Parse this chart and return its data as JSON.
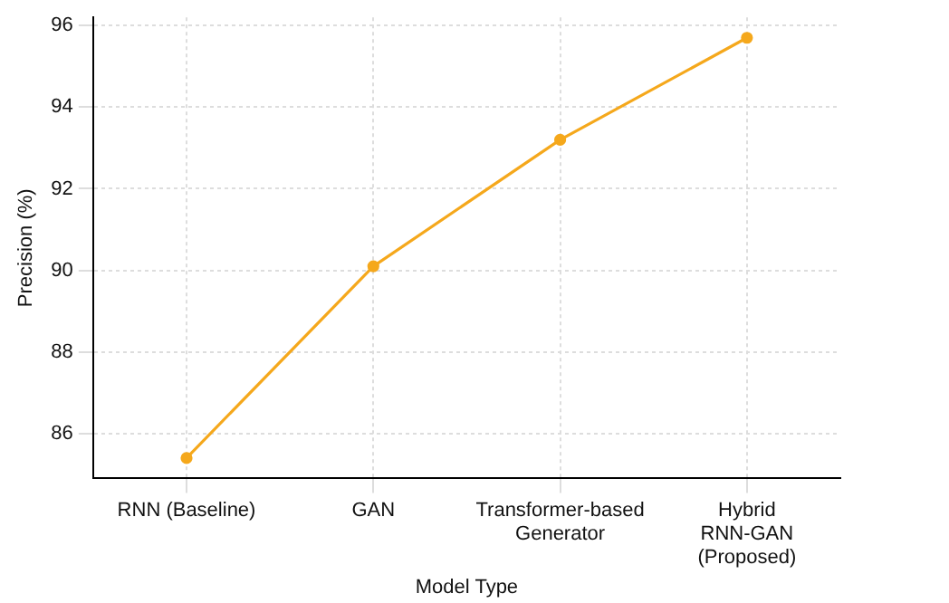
{
  "chart_data": {
    "type": "line",
    "xlabel": "Model Type",
    "ylabel": "Precision (%)",
    "categories": [
      "RNN (Baseline)",
      "GAN",
      "Transformer-based Generator",
      "Hybrid RNN-GAN (Proposed)"
    ],
    "series": [
      {
        "color": "#f5a81c",
        "values": [
          85.4,
          90.1,
          93.2,
          95.7
        ]
      }
    ],
    "ylim": [
      84.9,
      96.2
    ],
    "yticks": [
      86,
      88,
      90,
      92,
      94,
      96
    ],
    "grid": true,
    "marker": "circle",
    "line_style": "solid",
    "legend": false
  }
}
